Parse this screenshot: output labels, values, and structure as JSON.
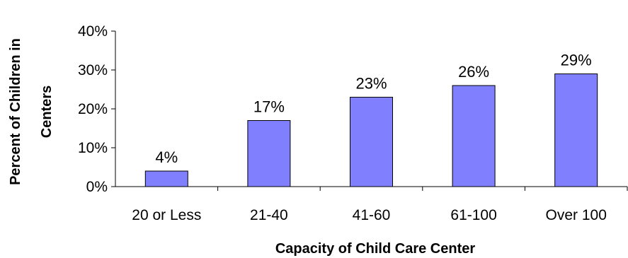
{
  "chart_data": {
    "type": "bar",
    "title": "",
    "xlabel": "Capacity of Child Care Center",
    "ylabel_lines": [
      "Percent of Children in",
      "Centers"
    ],
    "categories": [
      "20 or Less",
      "21-40",
      "41-60",
      "61-100",
      "Over 100"
    ],
    "values": [
      4,
      17,
      23,
      26,
      29
    ],
    "value_labels": [
      "4%",
      "17%",
      "23%",
      "26%",
      "29%"
    ],
    "ylim": [
      0,
      40
    ],
    "y_ticks": [
      0,
      10,
      20,
      30,
      40
    ],
    "y_tick_labels": [
      "0%",
      "10%",
      "20%",
      "30%",
      "40%"
    ],
    "grid": false,
    "legend": "none",
    "bar_color": "#8080ff",
    "bar_stroke": "#000000"
  }
}
